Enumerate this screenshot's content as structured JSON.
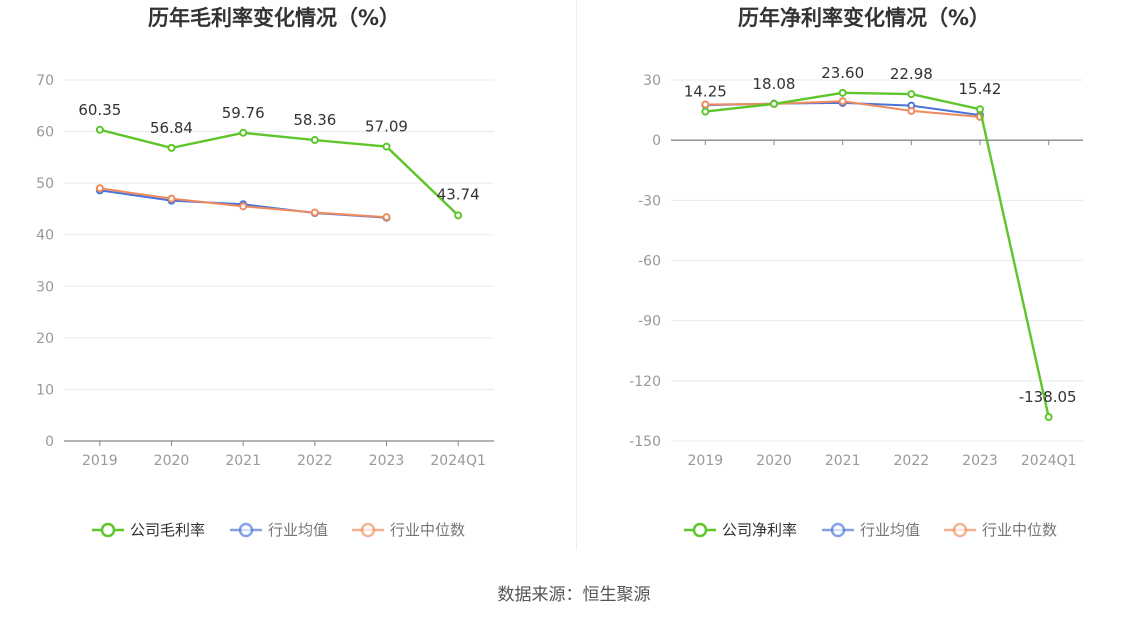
{
  "source_label": "数据来源：恒生聚源",
  "colors": {
    "company": "#5ec52b",
    "industry_avg": "#4a74d9",
    "industry_median": "#ef8a5f",
    "axis": "#888888",
    "grid": "#e6eaf2",
    "label": "#333333",
    "tick": "#999999"
  },
  "chart_data": [
    {
      "type": "line",
      "title": "历年毛利率变化情况（%）",
      "categories": [
        "2019",
        "2020",
        "2021",
        "2022",
        "2023",
        "2024Q1"
      ],
      "ylim": [
        0,
        70
      ],
      "yticks": [
        0,
        10,
        20,
        30,
        40,
        50,
        60,
        70
      ],
      "grid": true,
      "legend_position": "bottom",
      "series": [
        {
          "name": "公司毛利率",
          "key": "company",
          "values": [
            60.35,
            56.84,
            59.76,
            58.36,
            57.09,
            43.74
          ],
          "labels": [
            "60.35",
            "56.84",
            "59.76",
            "58.36",
            "57.09",
            "43.74"
          ]
        },
        {
          "name": "行业均值",
          "key": "industry_avg",
          "values": [
            48.6,
            46.6,
            45.9,
            44.2,
            43.3,
            null
          ]
        },
        {
          "name": "行业中位数",
          "key": "industry_median",
          "values": [
            49.0,
            47.0,
            45.5,
            44.3,
            43.4,
            null
          ]
        }
      ]
    },
    {
      "type": "line",
      "title": "历年净利率变化情况（%）",
      "categories": [
        "2019",
        "2020",
        "2021",
        "2022",
        "2023",
        "2024Q1"
      ],
      "ylim": [
        -150,
        30
      ],
      "yticks": [
        -150,
        -120,
        -90,
        -60,
        -30,
        0,
        30
      ],
      "grid": true,
      "legend_position": "bottom",
      "series": [
        {
          "name": "公司净利率",
          "key": "company",
          "values": [
            14.25,
            18.08,
            23.6,
            22.98,
            15.42,
            -138.05
          ],
          "labels": [
            "14.25",
            "18.08",
            "23.60",
            "22.98",
            "15.42",
            "-138.05"
          ]
        },
        {
          "name": "行业均值",
          "key": "industry_avg",
          "values": [
            17.5,
            18.2,
            18.6,
            17.2,
            12.5,
            null
          ]
        },
        {
          "name": "行业中位数",
          "key": "industry_median",
          "values": [
            17.8,
            18.1,
            19.4,
            14.6,
            11.6,
            null
          ]
        }
      ]
    }
  ]
}
